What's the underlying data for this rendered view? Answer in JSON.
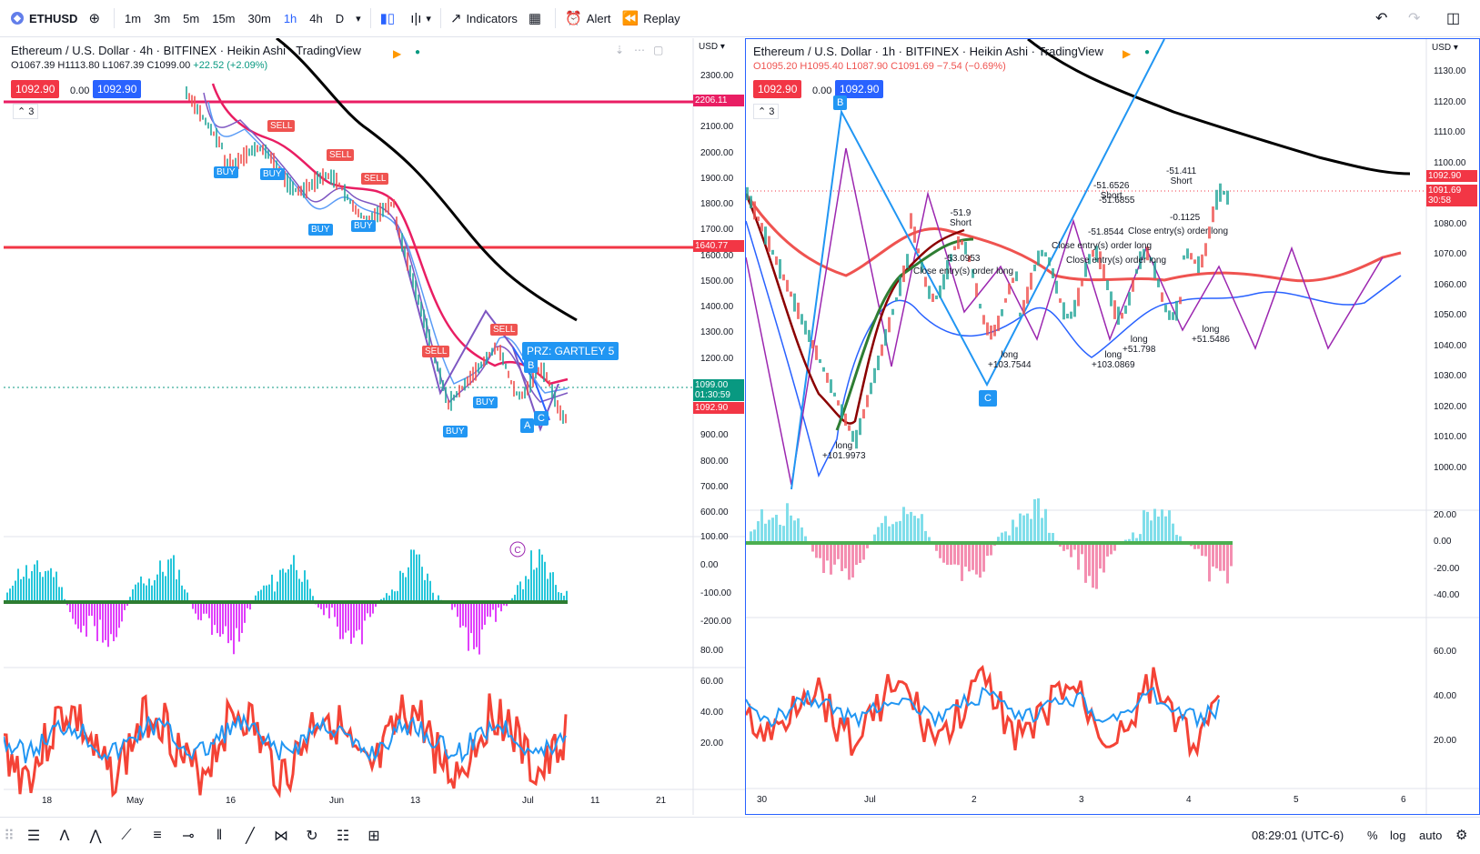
{
  "toolbar": {
    "symbol": "ETHUSD",
    "symbol_icon": "ethereum-icon",
    "intervals": [
      "1m",
      "3m",
      "5m",
      "15m",
      "30m",
      "1h",
      "4h",
      "D"
    ],
    "active_interval": "1h",
    "indicators_label": "Indicators",
    "alert_label": "Alert",
    "replay_label": "Replay"
  },
  "left_chart": {
    "title": "Ethereum / U.S. Dollar · 4h · BITFINEX · Heikin Ashi · TradingView",
    "ohlc": {
      "o": "O1067.39",
      "h": "H1113.80",
      "l": "L1067.39",
      "c": "C1099.00",
      "chg": "+22.52 (+2.09%)"
    },
    "bid": "1092.90",
    "spread": "0.00",
    "ask": "1092.90",
    "indicator_count": "3",
    "currency": "USD",
    "price_axis": [
      "2300.00",
      "2200.00",
      "2100.00",
      "2000.00",
      "1900.00",
      "1800.00",
      "1700.00",
      "1600.00",
      "1500.00",
      "1400.00",
      "1300.00",
      "1200.00",
      "1100.00",
      "1000.00",
      "900.00",
      "800.00",
      "700.00",
      "600.00"
    ],
    "price_tags": [
      {
        "label": "2206.11",
        "color": "#e91e63"
      },
      {
        "label": "1640.77",
        "color": "#f23645"
      },
      {
        "label": "1099.00",
        "sub": "01:30:59",
        "color": "#089981"
      },
      {
        "label": "1092.90",
        "color": "#f23645"
      }
    ],
    "osc_axis": [
      "100.00",
      "0.00",
      "-100.00",
      "-200.00"
    ],
    "rsi_axis": [
      "80.00",
      "60.00",
      "40.00",
      "20.00"
    ],
    "time_axis": [
      "18",
      "May",
      "16",
      "Jun",
      "13",
      "Jul",
      "11",
      "21"
    ],
    "harmonic_label": "PRZ: GARTLEY 5",
    "pattern_points": [
      "A",
      "B",
      "C"
    ],
    "signals": [
      "BUY",
      "SELL"
    ],
    "watermark": "C"
  },
  "right_chart": {
    "title": "Ethereum / U.S. Dollar · 1h · BITFINEX · Heikin Ashi · TradingView",
    "ohlc": {
      "o": "O1095.20",
      "h": "H1095.40",
      "l": "L1087.90",
      "c": "C1091.69",
      "chg": "−7.54 (−0.69%)"
    },
    "bid": "1092.90",
    "spread": "0.00",
    "ask": "1092.90",
    "indicator_count": "3",
    "currency": "USD",
    "price_axis": [
      "1130.00",
      "1120.00",
      "1110.00",
      "1100.00",
      "1090.00",
      "1080.00",
      "1070.00",
      "1060.00",
      "1050.00",
      "1040.00",
      "1030.00",
      "1020.00",
      "1010.00",
      "1000.00"
    ],
    "price_tags": [
      {
        "label": "1092.90",
        "color": "#f23645"
      },
      {
        "label": "1091.69",
        "sub": "30:58",
        "color": "#f23645"
      }
    ],
    "osc_axis": [
      "20.00",
      "0.00",
      "-20.00",
      "-40.00"
    ],
    "rsi_axis": [
      "60.00",
      "40.00",
      "20.00"
    ],
    "time_axis": [
      "30",
      "Jul",
      "2",
      "3",
      "4",
      "5",
      "6"
    ],
    "pattern_points": [
      "B",
      "C"
    ],
    "trade_labels": [
      {
        "side": "Short",
        "value": "-51.9"
      },
      {
        "side": "",
        "value": "-53.0953"
      },
      {
        "side": "Short",
        "value": "-51.6526"
      },
      {
        "side": "",
        "value": "-51.6855"
      },
      {
        "side": "",
        "value": "-51.8544"
      },
      {
        "side": "Short",
        "value": "-51.411"
      },
      {
        "side": "",
        "value": "-0.1125"
      },
      {
        "side": "long",
        "value": "+101.9973"
      },
      {
        "side": "long",
        "value": "+103.7544"
      },
      {
        "side": "long",
        "value": "+103.0869"
      },
      {
        "side": "long",
        "value": "+51.798"
      },
      {
        "side": "long",
        "value": "+51.5486"
      }
    ],
    "close_label": "Close entry(s) order long"
  },
  "statusbar": {
    "time": "08:29:01 (UTC-6)",
    "percent": "%",
    "log": "log",
    "auto": "auto"
  }
}
